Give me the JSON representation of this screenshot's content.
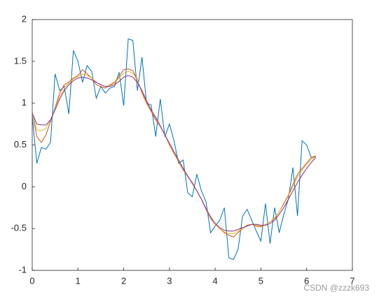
{
  "chart_data": {
    "type": "line",
    "x": [
      0,
      0.1,
      0.2,
      0.3,
      0.4,
      0.5,
      0.6,
      0.7,
      0.8,
      0.9,
      1.0,
      1.1,
      1.2,
      1.3,
      1.4,
      1.5,
      1.6,
      1.7,
      1.8,
      1.9,
      2.0,
      2.1,
      2.2,
      2.3,
      2.4,
      2.5,
      2.6,
      2.7,
      2.8,
      2.9,
      3.0,
      3.1,
      3.2,
      3.3,
      3.4,
      3.5,
      3.6,
      3.7,
      3.8,
      3.9,
      4.0,
      4.1,
      4.2,
      4.3,
      4.4,
      4.5,
      4.6,
      4.7,
      4.8,
      4.9,
      5.0,
      5.1,
      5.2,
      5.3,
      5.4,
      5.5,
      5.6,
      5.7,
      5.8,
      5.9,
      6.0,
      6.1,
      6.2
    ],
    "series": [
      {
        "color": "#0072BD",
        "values": [
          0.85,
          0.28,
          0.47,
          0.45,
          0.53,
          1.35,
          1.15,
          1.2,
          0.87,
          1.63,
          1.5,
          1.25,
          1.45,
          1.38,
          1.06,
          1.2,
          1.12,
          1.18,
          1.2,
          1.37,
          0.97,
          1.77,
          1.75,
          1.15,
          1.55,
          1.0,
          0.98,
          0.6,
          1.05,
          0.6,
          0.75,
          0.55,
          0.28,
          0.32,
          -0.07,
          -0.12,
          0.15,
          -0.05,
          -0.18,
          -0.55,
          -0.47,
          -0.4,
          -0.25,
          -0.85,
          -0.87,
          -0.75,
          -0.35,
          -0.27,
          -0.4,
          -0.53,
          -0.65,
          -0.2,
          -0.68,
          -0.25,
          -0.55,
          -0.33,
          -0.15,
          0.23,
          -0.35,
          0.55,
          0.5,
          0.35,
          0.36
        ]
      },
      {
        "color": "#D95319",
        "values": [
          0.9,
          0.6,
          0.53,
          0.62,
          0.78,
          0.95,
          1.12,
          1.22,
          1.25,
          1.3,
          1.33,
          1.4,
          1.35,
          1.3,
          1.22,
          1.2,
          1.18,
          1.22,
          1.25,
          1.32,
          1.4,
          1.41,
          1.39,
          1.28,
          1.12,
          1.0,
          0.9,
          0.8,
          0.72,
          0.62,
          0.5,
          0.4,
          0.3,
          0.2,
          0.12,
          0.05,
          -0.05,
          -0.15,
          -0.27,
          -0.38,
          -0.45,
          -0.5,
          -0.55,
          -0.58,
          -0.6,
          -0.55,
          -0.5,
          -0.46,
          -0.45,
          -0.47,
          -0.48,
          -0.45,
          -0.42,
          -0.38,
          -0.3,
          -0.2,
          -0.1,
          0.03,
          0.15,
          0.22,
          0.28,
          0.35,
          0.37
        ]
      },
      {
        "color": "#EDB120",
        "values": [
          0.88,
          0.68,
          0.67,
          0.7,
          0.8,
          0.94,
          1.08,
          1.18,
          1.24,
          1.29,
          1.32,
          1.35,
          1.33,
          1.3,
          1.25,
          1.22,
          1.2,
          1.21,
          1.24,
          1.3,
          1.36,
          1.38,
          1.36,
          1.27,
          1.14,
          1.02,
          0.91,
          0.82,
          0.72,
          0.62,
          0.51,
          0.41,
          0.31,
          0.21,
          0.12,
          0.04,
          -0.05,
          -0.15,
          -0.26,
          -0.37,
          -0.45,
          -0.5,
          -0.54,
          -0.56,
          -0.56,
          -0.53,
          -0.5,
          -0.47,
          -0.45,
          -0.46,
          -0.47,
          -0.45,
          -0.42,
          -0.37,
          -0.3,
          -0.21,
          -0.11,
          0.0,
          0.12,
          0.2,
          0.27,
          0.33,
          0.36
        ]
      },
      {
        "color": "#7E2F8E",
        "values": [
          0.88,
          0.75,
          0.74,
          0.74,
          0.8,
          0.92,
          1.05,
          1.15,
          1.22,
          1.27,
          1.3,
          1.31,
          1.3,
          1.28,
          1.25,
          1.22,
          1.2,
          1.2,
          1.22,
          1.26,
          1.31,
          1.33,
          1.31,
          1.25,
          1.15,
          1.03,
          0.92,
          0.83,
          0.73,
          0.62,
          0.52,
          0.42,
          0.32,
          0.22,
          0.13,
          0.04,
          -0.05,
          -0.15,
          -0.26,
          -0.36,
          -0.44,
          -0.49,
          -0.52,
          -0.53,
          -0.53,
          -0.51,
          -0.49,
          -0.47,
          -0.45,
          -0.45,
          -0.46,
          -0.46,
          -0.44,
          -0.4,
          -0.33,
          -0.25,
          -0.15,
          -0.05,
          0.05,
          0.14,
          0.22,
          0.29,
          0.35
        ]
      }
    ],
    "xlim": [
      0,
      7
    ],
    "xticks": [
      0,
      1,
      2,
      3,
      4,
      5,
      6,
      7
    ],
    "ylim": [
      -1,
      2
    ],
    "yticks": [
      -1,
      -0.5,
      0,
      0.5,
      1,
      1.5,
      2
    ]
  },
  "watermark": "CSDN @zzzk693"
}
